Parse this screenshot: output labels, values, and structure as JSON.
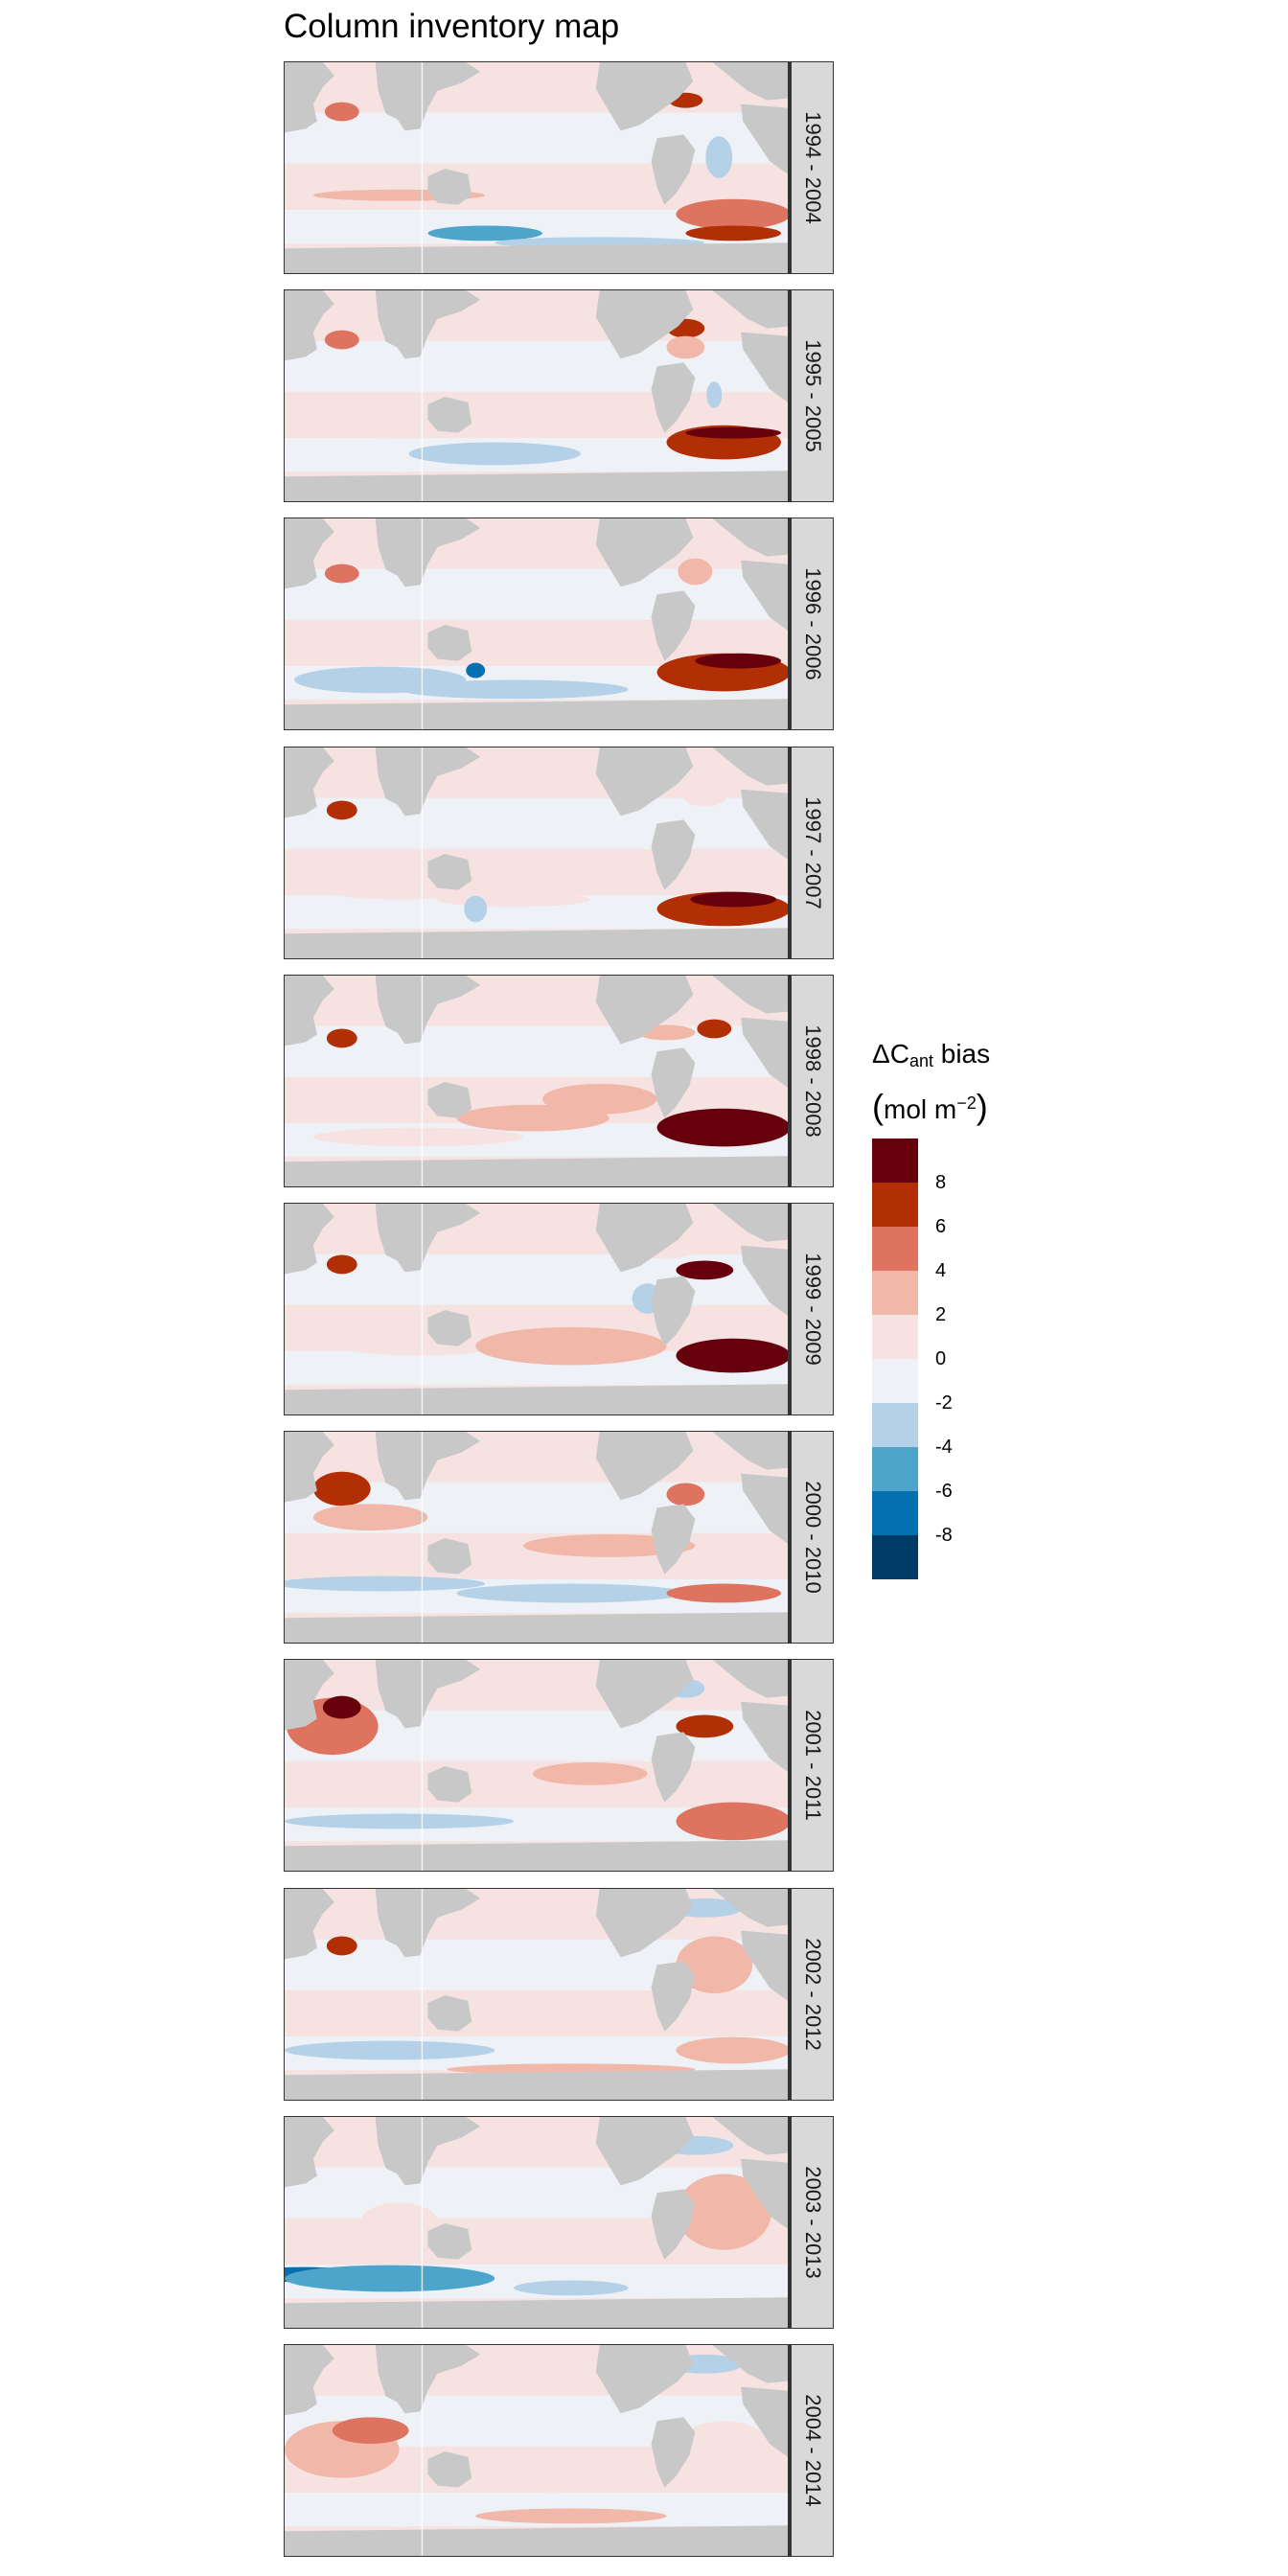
{
  "title": "Column inventory map",
  "panels": [
    {
      "period": "1994 - 2004"
    },
    {
      "period": "1995 - 2005"
    },
    {
      "period": "1996 - 2006"
    },
    {
      "period": "1997 - 2007"
    },
    {
      "period": "1998 - 2008"
    },
    {
      "period": "1999 - 2009"
    },
    {
      "period": "2000 - 2010"
    },
    {
      "period": "2001 - 2011"
    },
    {
      "period": "2002 - 2012"
    },
    {
      "period": "2003 - 2013"
    },
    {
      "period": "2004 - 2014"
    }
  ],
  "legend": {
    "title_main": "ΔC",
    "title_sub": "ant",
    "title_rest": " bias",
    "unit_main": "mol m",
    "unit_sup": "−2",
    "bins": [
      {
        "color": "#67000d"
      },
      {
        "color": "#b22f06"
      },
      {
        "color": "#de7460"
      },
      {
        "color": "#f1b7a9"
      },
      {
        "color": "#f6e3e1"
      },
      {
        "color": "#eef2f7"
      },
      {
        "color": "#b4d1e7"
      },
      {
        "color": "#4ea5cc"
      },
      {
        "color": "#0570b0"
      },
      {
        "color": "#003a66"
      }
    ],
    "tick_labels": [
      "8",
      "6",
      "4",
      "2",
      "0",
      "-2",
      "-4",
      "-6",
      "-8"
    ]
  },
  "colors": {
    "land": "#c8c8c8",
    "background": "#eef2f7",
    "strip": "#d9d9d9"
  },
  "chart_data": {
    "type": "heatmap",
    "title": "Column inventory map",
    "facets": [
      "1994 - 2004",
      "1995 - 2005",
      "1996 - 2006",
      "1997 - 2007",
      "1998 - 2008",
      "1999 - 2009",
      "2000 - 2010",
      "2001 - 2011",
      "2002 - 2012",
      "2003 - 2013",
      "2004 - 2014"
    ],
    "colorbar_breaks": [
      -10,
      -8,
      -6,
      -4,
      -2,
      0,
      2,
      4,
      6,
      8,
      10
    ],
    "colorbar_ticks": [
      8,
      6,
      4,
      2,
      0,
      -2,
      -4,
      -6,
      -8
    ],
    "legend_placement": "right",
    "grid": false
  }
}
